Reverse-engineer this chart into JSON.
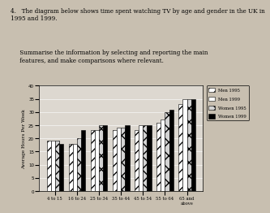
{
  "title_question": "4.   The diagram below shows time spent watching TV by age and gender in the UK in 1995 and 1999.",
  "subtitle": "     Summarise the information by selecting and reporting the main\n     features, and make comparisons where relevant.",
  "categories": [
    "4 to 15",
    "16 to 24",
    "25 to 34",
    "35 to 44",
    "45 to 54",
    "55 to 64",
    "65 and\nabove"
  ],
  "series": {
    "Men 1995": [
      19,
      18,
      23,
      23,
      23,
      26,
      33
    ],
    "Men 1999": [
      19,
      18,
      23,
      24,
      25,
      27,
      35
    ],
    "Women 1995": [
      19,
      20,
      25,
      24,
      25,
      30,
      35
    ],
    "Women 1999": [
      18,
      23,
      25,
      25,
      25,
      31,
      35
    ]
  },
  "ylabel": "Average Hours Per Week",
  "ylim": [
    0,
    40
  ],
  "yticks": [
    0,
    5,
    10,
    15,
    20,
    25,
    30,
    35,
    40
  ],
  "legend_labels": [
    "Men 1995",
    "Men 1999",
    "Women 1995",
    "Women 1999"
  ],
  "bg_color": "#c8bfb0"
}
